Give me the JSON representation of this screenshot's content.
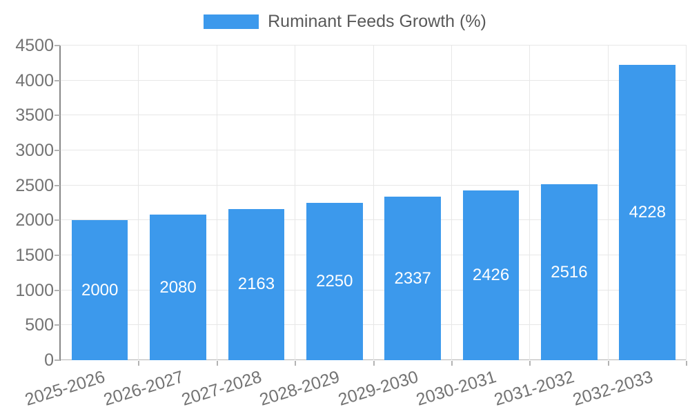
{
  "legend": {
    "label": "Ruminant Feeds Growth (%)"
  },
  "chart_data": {
    "type": "bar",
    "title": "Ruminant Feeds Growth (%)",
    "categories": [
      "2025-2026",
      "2026-2027",
      "2027-2028",
      "2028-2029",
      "2029-2030",
      "2030-2031",
      "2031-2032",
      "2032-2033"
    ],
    "values": [
      2000,
      2080,
      2163,
      2250,
      2337,
      2426,
      2516,
      4228
    ],
    "xlabel": "",
    "ylabel": "",
    "ylim": [
      0,
      4500
    ],
    "yticks": [
      0,
      500,
      1000,
      1500,
      2000,
      2500,
      3000,
      3500,
      4000,
      4500
    ],
    "grid": true,
    "legend_position": "top",
    "bar_label_position": "center",
    "colors": {
      "bar": "#3c99ec",
      "bar_label": "#ffffff",
      "axis_text": "#737373",
      "legend_text": "#595959",
      "gridline": "#e7e7e7",
      "zero_line": "#b3b3b3",
      "tick_mark": "#b3b3b3",
      "axis_line": "#878787"
    }
  }
}
